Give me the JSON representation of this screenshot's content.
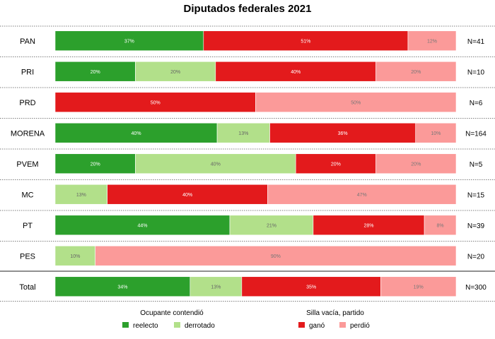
{
  "chart_data": {
    "type": "bar",
    "orientation": "horizontal",
    "stacked": true,
    "title": "Diputados federales 2021",
    "segments": [
      {
        "key": "reelecto",
        "color": "#2ca02c",
        "label_color": "#ffffff"
      },
      {
        "key": "derrotado",
        "color": "#b2e08a",
        "label_color": "#666666"
      },
      {
        "key": "ganó",
        "color": "#e31a1c",
        "label_color": "#ffffff"
      },
      {
        "key": "perdió",
        "color": "#fb9a99",
        "label_color": "#777777"
      }
    ],
    "rows": [
      {
        "party": "PAN",
        "n": "N=41",
        "values": [
          37,
          0,
          51,
          12
        ]
      },
      {
        "party": "PRI",
        "n": "N=10",
        "values": [
          20,
          20,
          40,
          20
        ]
      },
      {
        "party": "PRD",
        "n": "N=6",
        "values": [
          0,
          0,
          50,
          50
        ]
      },
      {
        "party": "MORENA",
        "n": "N=164",
        "values": [
          40,
          13,
          36,
          10
        ]
      },
      {
        "party": "PVEM",
        "n": "N=5",
        "values": [
          20,
          40,
          20,
          20
        ]
      },
      {
        "party": "MC",
        "n": "N=15",
        "values": [
          0,
          13,
          40,
          47
        ]
      },
      {
        "party": "PT",
        "n": "N=39",
        "values": [
          44,
          21,
          28,
          8
        ]
      },
      {
        "party": "PES",
        "n": "N=20",
        "values": [
          0,
          10,
          0,
          90
        ]
      },
      {
        "party": "Total",
        "n": "N=300",
        "values": [
          34,
          13,
          35,
          19
        ]
      }
    ],
    "legend": {
      "groups": [
        {
          "title": "Ocupante contendió",
          "items": [
            {
              "label": "reelecto",
              "color": "#2ca02c"
            },
            {
              "label": "derrotado",
              "color": "#b2e08a"
            }
          ]
        },
        {
          "title": "Silla vacía, partido",
          "items": [
            {
              "label": "ganó",
              "color": "#e31a1c"
            },
            {
              "label": "perdió",
              "color": "#fb9a99"
            }
          ]
        }
      ],
      "position": "bottom"
    },
    "xlim": [
      0,
      100
    ]
  }
}
